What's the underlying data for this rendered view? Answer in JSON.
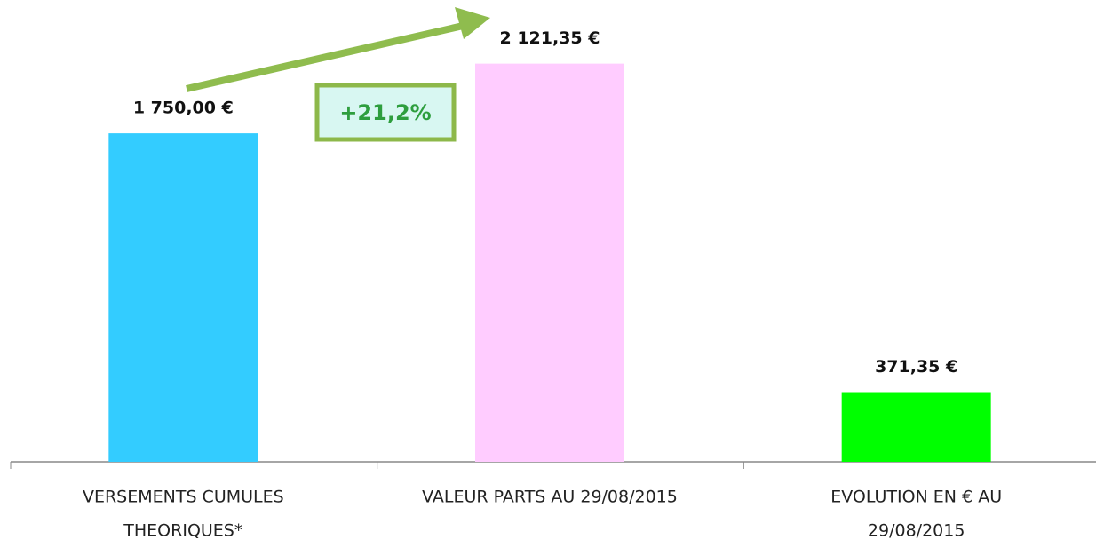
{
  "chart_data": {
    "type": "bar",
    "categories": [
      [
        "VERSEMENTS  CUMULES",
        "THEORIQUES*"
      ],
      [
        "VALEUR PARTS AU 29/08/2015"
      ],
      [
        "EVOLUTION EN € AU",
        "29/08/2015"
      ]
    ],
    "values": [
      1750,
      2121.35,
      371.35
    ],
    "value_labels": [
      "1 750,00 €",
      "2 121,35 €",
      "371,35 €"
    ],
    "colors": [
      "#33ccff",
      "#ffccff",
      "#00ff00"
    ],
    "ylim": [
      0,
      2200
    ],
    "annotation": "+21,2%"
  }
}
